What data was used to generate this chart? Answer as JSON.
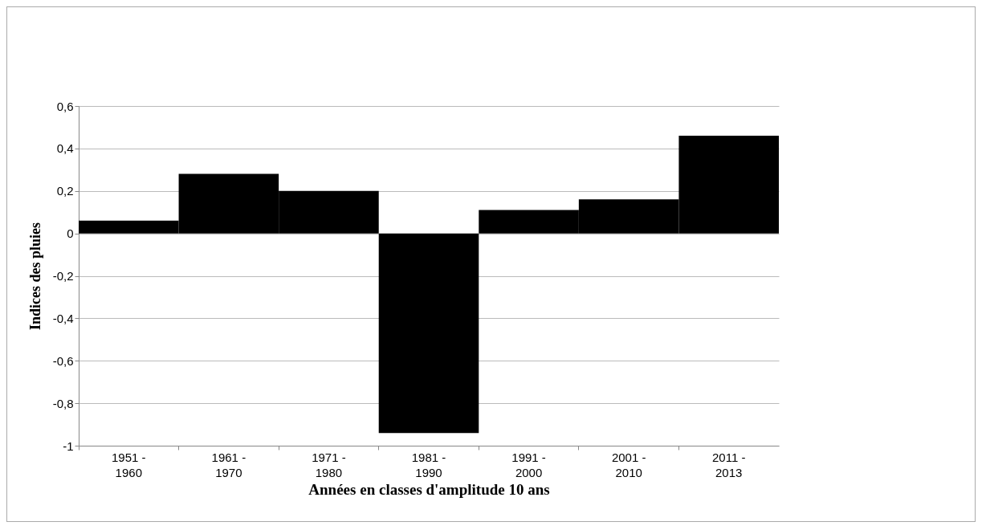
{
  "chart_data": {
    "type": "bar",
    "xlabel": "Années en classes d'amplitude 10 ans",
    "ylabel": "Indices des pluies",
    "categories": [
      "1951 - 1960",
      "1961 - 1970",
      "1971 - 1980",
      "1981 - 1990",
      "1991 - 2000",
      "2001 - 2010",
      "2011 - 2013"
    ],
    "values": [
      0.06,
      0.28,
      0.2,
      -0.94,
      0.11,
      0.16,
      0.46
    ],
    "color": "#000000",
    "ylim": [
      -1,
      0.6
    ],
    "yticks": [
      {
        "value": -1,
        "label": "-1"
      },
      {
        "value": -0.8,
        "label": "-0,8"
      },
      {
        "value": -0.6,
        "label": "-0,6"
      },
      {
        "value": -0.4,
        "label": "-0,4"
      },
      {
        "value": -0.2,
        "label": "-0,2"
      },
      {
        "value": 0,
        "label": "0"
      },
      {
        "value": 0.2,
        "label": "0,2"
      },
      {
        "value": 0.4,
        "label": "0,4"
      },
      {
        "value": 0.6,
        "label": "0,6"
      }
    ],
    "grid": "y"
  }
}
